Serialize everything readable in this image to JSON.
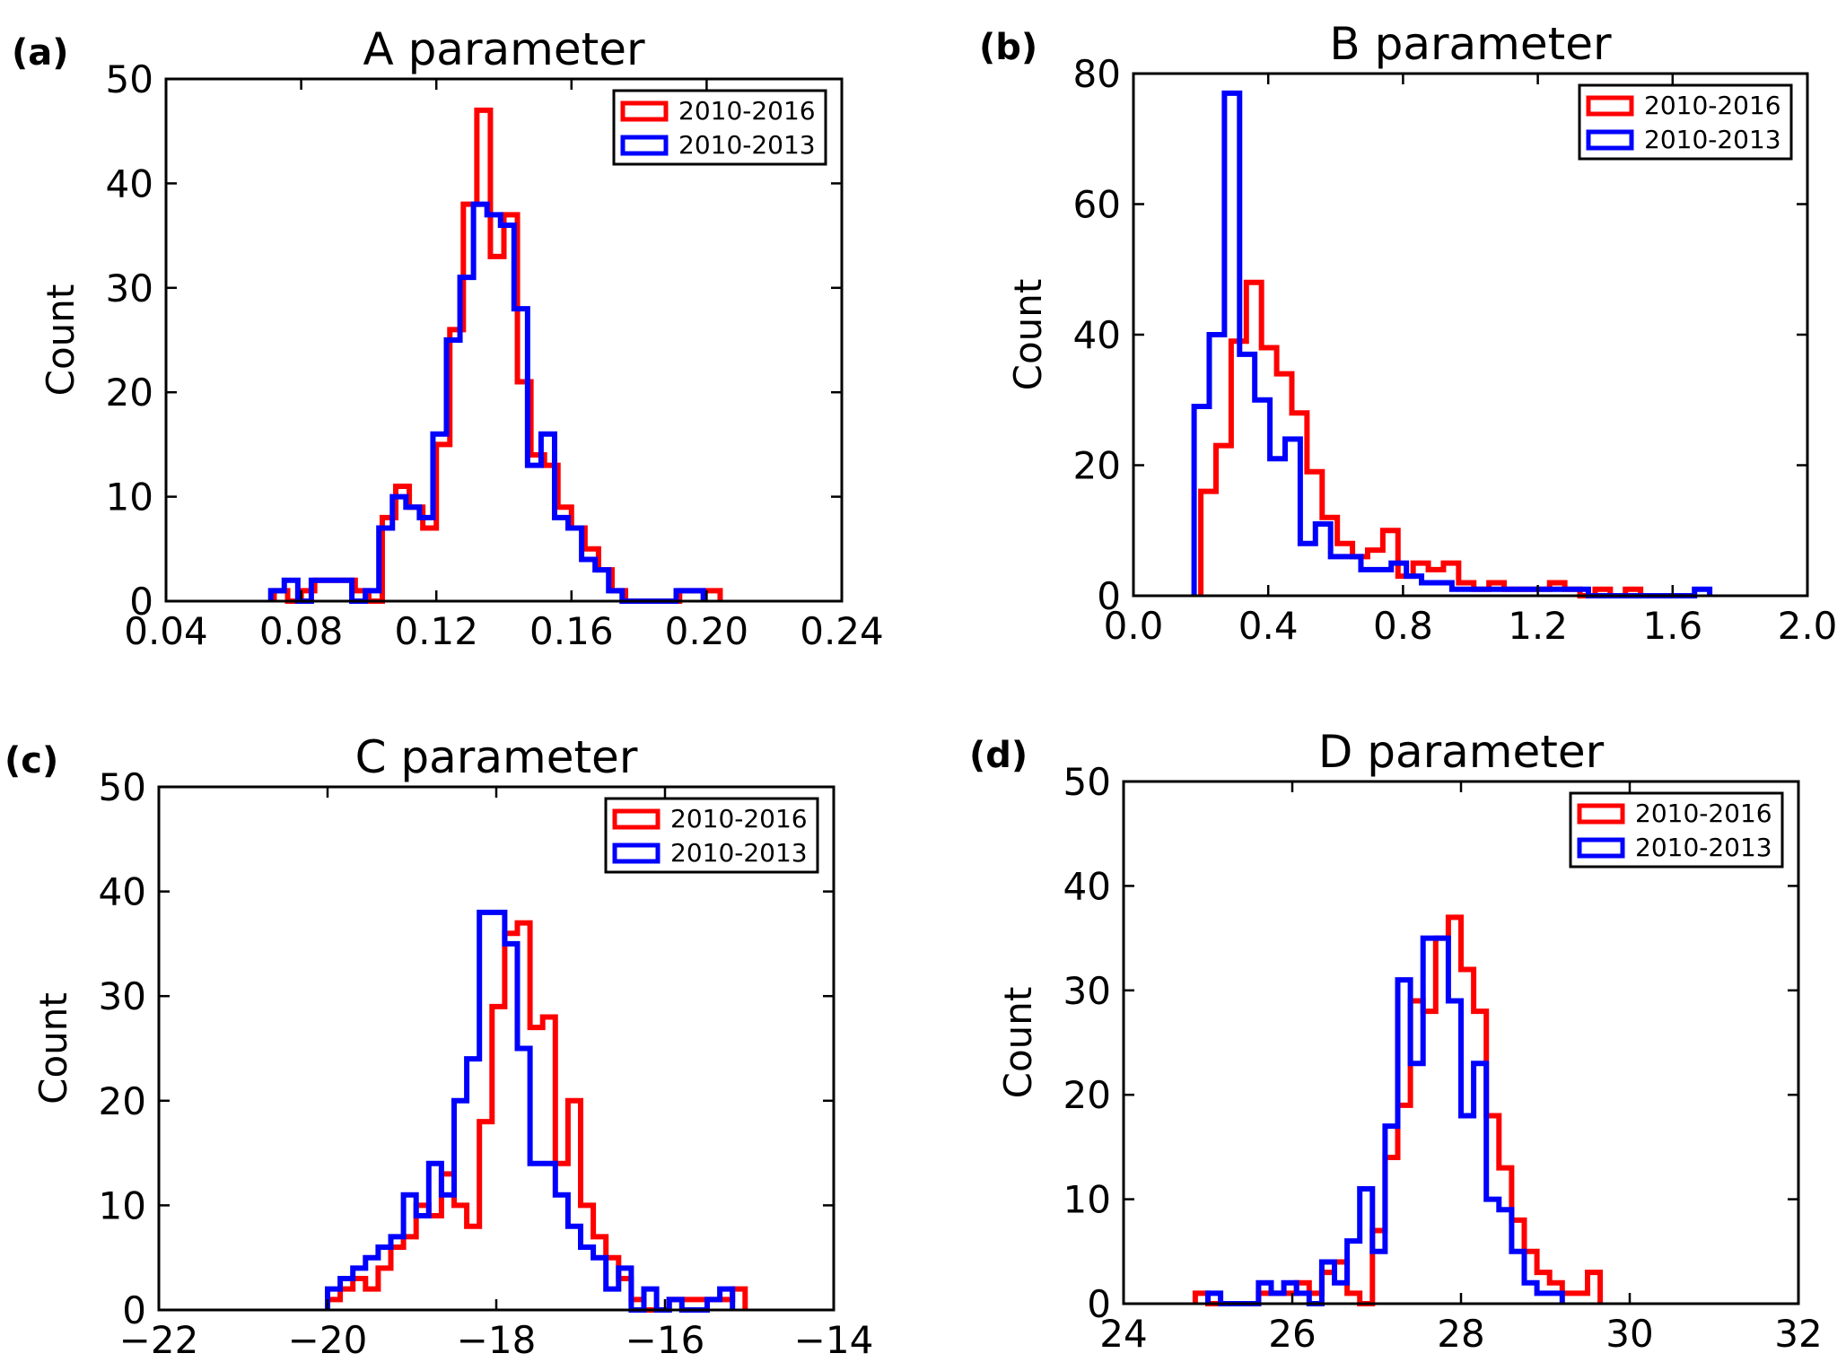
{
  "chart_data": [
    {
      "type": "histogram",
      "panel_label": "(a)",
      "title": "A parameter",
      "xlabel": "",
      "ylabel": "Count",
      "xlim": [
        0.04,
        0.24
      ],
      "ylim": [
        0,
        50
      ],
      "xticks": [
        "0.04",
        "0.08",
        "0.12",
        "0.16",
        "0.20",
        "0.24"
      ],
      "yticks": [
        "0",
        "10",
        "20",
        "30",
        "40",
        "50"
      ],
      "legend": {
        "position": "top-right",
        "entries": [
          "2010-2016",
          "2010-2013"
        ]
      },
      "series": [
        {
          "name": "2010-2016",
          "color": "#ff0000",
          "edges": [
            0.072,
            0.076,
            0.08,
            0.084,
            0.088,
            0.092,
            0.096,
            0.1,
            0.104,
            0.108,
            0.112,
            0.116,
            0.12,
            0.124,
            0.128,
            0.132,
            0.136,
            0.14,
            0.144,
            0.148,
            0.152,
            0.156,
            0.16,
            0.164,
            0.168,
            0.172,
            0.176,
            0.18,
            0.184,
            0.188,
            0.192,
            0.196,
            0.2,
            0.204
          ],
          "counts": [
            1,
            0,
            1,
            2,
            2,
            2,
            1,
            0,
            8,
            11,
            9,
            7,
            15,
            26,
            38,
            47,
            33,
            37,
            21,
            14,
            13,
            9,
            7,
            5,
            3,
            1,
            0,
            0,
            0,
            0,
            1,
            1,
            1
          ]
        },
        {
          "name": "2010-2013",
          "color": "#0000ff",
          "edges": [
            0.071,
            0.075,
            0.079,
            0.083,
            0.087,
            0.091,
            0.095,
            0.099,
            0.103,
            0.107,
            0.111,
            0.115,
            0.119,
            0.123,
            0.127,
            0.131,
            0.135,
            0.139,
            0.143,
            0.147,
            0.151,
            0.155,
            0.159,
            0.163,
            0.167,
            0.171,
            0.175,
            0.179,
            0.183,
            0.187,
            0.191,
            0.195,
            0.199
          ],
          "counts": [
            1,
            2,
            0,
            2,
            2,
            2,
            0,
            1,
            7,
            10,
            9,
            8,
            16,
            25,
            31,
            38,
            37,
            36,
            28,
            13,
            16,
            8,
            7,
            4,
            3,
            1,
            0,
            0,
            0,
            0,
            1,
            1
          ]
        }
      ]
    },
    {
      "type": "histogram",
      "panel_label": "(b)",
      "title": "B parameter",
      "xlabel": "",
      "ylabel": "Count",
      "xlim": [
        0.0,
        2.0
      ],
      "ylim": [
        0,
        80
      ],
      "xticks": [
        "0.0",
        "0.4",
        "0.8",
        "1.2",
        "1.6",
        "2.0"
      ],
      "yticks": [
        "0",
        "20",
        "40",
        "60",
        "80"
      ],
      "legend": {
        "position": "top-right",
        "entries": [
          "2010-2016",
          "2010-2013"
        ]
      },
      "series": [
        {
          "name": "2010-2016",
          "color": "#ff0000",
          "edges": [
            0.2,
            0.245,
            0.29,
            0.335,
            0.38,
            0.425,
            0.47,
            0.515,
            0.56,
            0.605,
            0.65,
            0.695,
            0.74,
            0.785,
            0.83,
            0.875,
            0.92,
            0.965,
            1.01,
            1.055,
            1.1,
            1.145,
            1.19,
            1.235,
            1.28,
            1.325,
            1.37,
            1.415,
            1.46,
            1.505
          ],
          "counts": [
            16,
            23,
            39,
            48,
            38,
            34,
            28,
            19,
            12,
            8,
            6,
            7,
            10,
            3,
            5,
            4,
            5,
            2,
            1,
            2,
            1,
            1,
            1,
            2,
            1,
            0,
            1,
            0,
            1
          ]
        },
        {
          "name": "2010-2013",
          "color": "#0000ff",
          "edges": [
            0.18,
            0.225,
            0.27,
            0.315,
            0.36,
            0.405,
            0.45,
            0.495,
            0.54,
            0.585,
            0.63,
            0.675,
            0.72,
            0.765,
            0.81,
            0.855,
            0.9,
            0.945,
            0.99,
            1.035,
            1.08,
            1.125,
            1.17,
            1.215,
            1.26,
            1.305,
            1.35,
            1.395,
            1.44,
            1.485,
            1.53,
            1.575,
            1.62,
            1.665,
            1.71
          ],
          "counts": [
            29,
            40,
            77,
            37,
            30,
            21,
            24,
            8,
            11,
            6,
            6,
            4,
            4,
            5,
            3,
            2,
            2,
            1,
            1,
            1,
            1,
            1,
            1,
            1,
            1,
            1,
            0,
            0,
            0,
            0,
            0,
            0,
            0,
            1
          ]
        }
      ]
    },
    {
      "type": "histogram",
      "panel_label": "(c)",
      "title": "C parameter",
      "xlabel": "",
      "ylabel": "Count",
      "xlim": [
        -22,
        -14
      ],
      "ylim": [
        0,
        50
      ],
      "xticks": [
        "−22",
        "−20",
        "−18",
        "−16",
        "−14"
      ],
      "yticks": [
        "0",
        "10",
        "20",
        "30",
        "40",
        "50"
      ],
      "legend": {
        "position": "top-right",
        "entries": [
          "2010-2016",
          "2010-2013"
        ]
      },
      "series": [
        {
          "name": "2010-2016",
          "color": "#ff0000",
          "edges": [
            -20.0,
            -19.85,
            -19.7,
            -19.55,
            -19.4,
            -19.25,
            -19.1,
            -18.95,
            -18.8,
            -18.65,
            -18.5,
            -18.35,
            -18.2,
            -18.05,
            -17.9,
            -17.75,
            -17.6,
            -17.45,
            -17.3,
            -17.15,
            -17.0,
            -16.85,
            -16.7,
            -16.55,
            -16.4,
            -16.25,
            -16.1,
            -15.95,
            -15.8,
            -15.65,
            -15.5,
            -15.35,
            -15.2,
            -15.05
          ],
          "counts": [
            1,
            2,
            3,
            2,
            4,
            6,
            7,
            10,
            9,
            13,
            10,
            8,
            18,
            29,
            36,
            37,
            27,
            28,
            14,
            20,
            10,
            7,
            5,
            3,
            1,
            0,
            0,
            1,
            1,
            1,
            1,
            1,
            2
          ]
        },
        {
          "name": "2010-2013",
          "color": "#0000ff",
          "edges": [
            -20.0,
            -19.85,
            -19.7,
            -19.55,
            -19.4,
            -19.25,
            -19.1,
            -18.95,
            -18.8,
            -18.65,
            -18.5,
            -18.35,
            -18.2,
            -18.05,
            -17.9,
            -17.75,
            -17.6,
            -17.45,
            -17.3,
            -17.15,
            -17.0,
            -16.85,
            -16.7,
            -16.55,
            -16.4,
            -16.25,
            -16.1,
            -15.95,
            -15.8,
            -15.65,
            -15.5,
            -15.35,
            -15.2
          ],
          "counts": [
            2,
            3,
            4,
            5,
            6,
            7,
            11,
            9,
            14,
            11,
            20,
            24,
            38,
            38,
            35,
            25,
            14,
            14,
            11,
            8,
            6,
            5,
            2,
            4,
            0,
            2,
            0,
            1,
            0,
            0,
            1,
            2
          ]
        }
      ]
    },
    {
      "type": "histogram",
      "panel_label": "(d)",
      "title": "D parameter",
      "xlabel": "",
      "ylabel": "Count",
      "xlim": [
        24,
        32
      ],
      "ylim": [
        0,
        50
      ],
      "xticks": [
        "24",
        "26",
        "28",
        "30",
        "32"
      ],
      "yticks": [
        "0",
        "10",
        "20",
        "30",
        "40",
        "50"
      ],
      "legend": {
        "position": "top-right",
        "entries": [
          "2010-2016",
          "2010-2013"
        ]
      },
      "series": [
        {
          "name": "2010-2016",
          "color": "#ff0000",
          "edges": [
            24.85,
            25.0,
            25.15,
            25.3,
            25.45,
            25.6,
            25.75,
            25.9,
            26.05,
            26.2,
            26.35,
            26.5,
            26.65,
            26.8,
            26.95,
            27.1,
            27.25,
            27.4,
            27.55,
            27.7,
            27.85,
            28.0,
            28.15,
            28.3,
            28.45,
            28.6,
            28.75,
            28.9,
            29.05,
            29.2,
            29.35,
            29.5,
            29.65
          ],
          "counts": [
            1,
            0,
            0,
            0,
            0,
            1,
            1,
            1,
            2,
            1,
            3,
            4,
            1,
            0,
            7,
            14,
            19,
            29,
            28,
            35,
            37,
            32,
            28,
            18,
            13,
            8,
            5,
            3,
            2,
            1,
            1,
            3
          ]
        },
        {
          "name": "2010-2013",
          "color": "#0000ff",
          "edges": [
            25.0,
            25.15,
            25.3,
            25.45,
            25.6,
            25.75,
            25.9,
            26.05,
            26.2,
            26.35,
            26.5,
            26.65,
            26.8,
            26.95,
            27.1,
            27.25,
            27.4,
            27.55,
            27.7,
            27.85,
            28.0,
            28.15,
            28.3,
            28.45,
            28.6,
            28.75,
            28.9,
            29.05,
            29.2
          ],
          "counts": [
            1,
            0,
            0,
            0,
            2,
            1,
            2,
            1,
            0,
            4,
            2,
            6,
            11,
            5,
            17,
            31,
            23,
            35,
            35,
            29,
            18,
            23,
            10,
            9,
            5,
            2,
            1,
            1
          ]
        }
      ]
    }
  ]
}
